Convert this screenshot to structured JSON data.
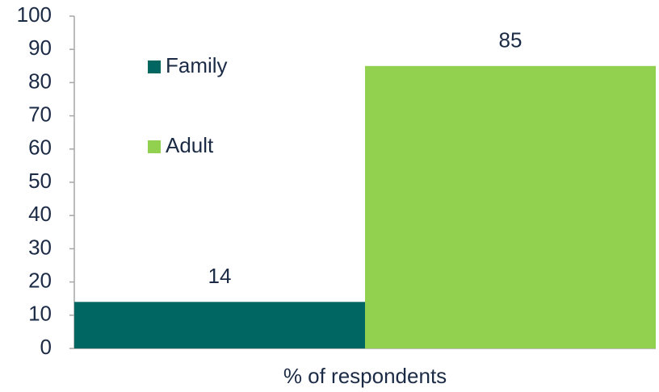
{
  "chart_data": {
    "type": "bar",
    "categories": [
      "% of respondents"
    ],
    "series": [
      {
        "name": "Family",
        "color": "#006662",
        "values": [
          14
        ]
      },
      {
        "name": "Adult",
        "color": "#92d050",
        "values": [
          85
        ]
      }
    ],
    "ylim": [
      0,
      100
    ],
    "yticks": [
      0,
      10,
      20,
      30,
      40,
      50,
      60,
      70,
      80,
      90,
      100
    ],
    "grid": false,
    "legend": "upper left"
  }
}
